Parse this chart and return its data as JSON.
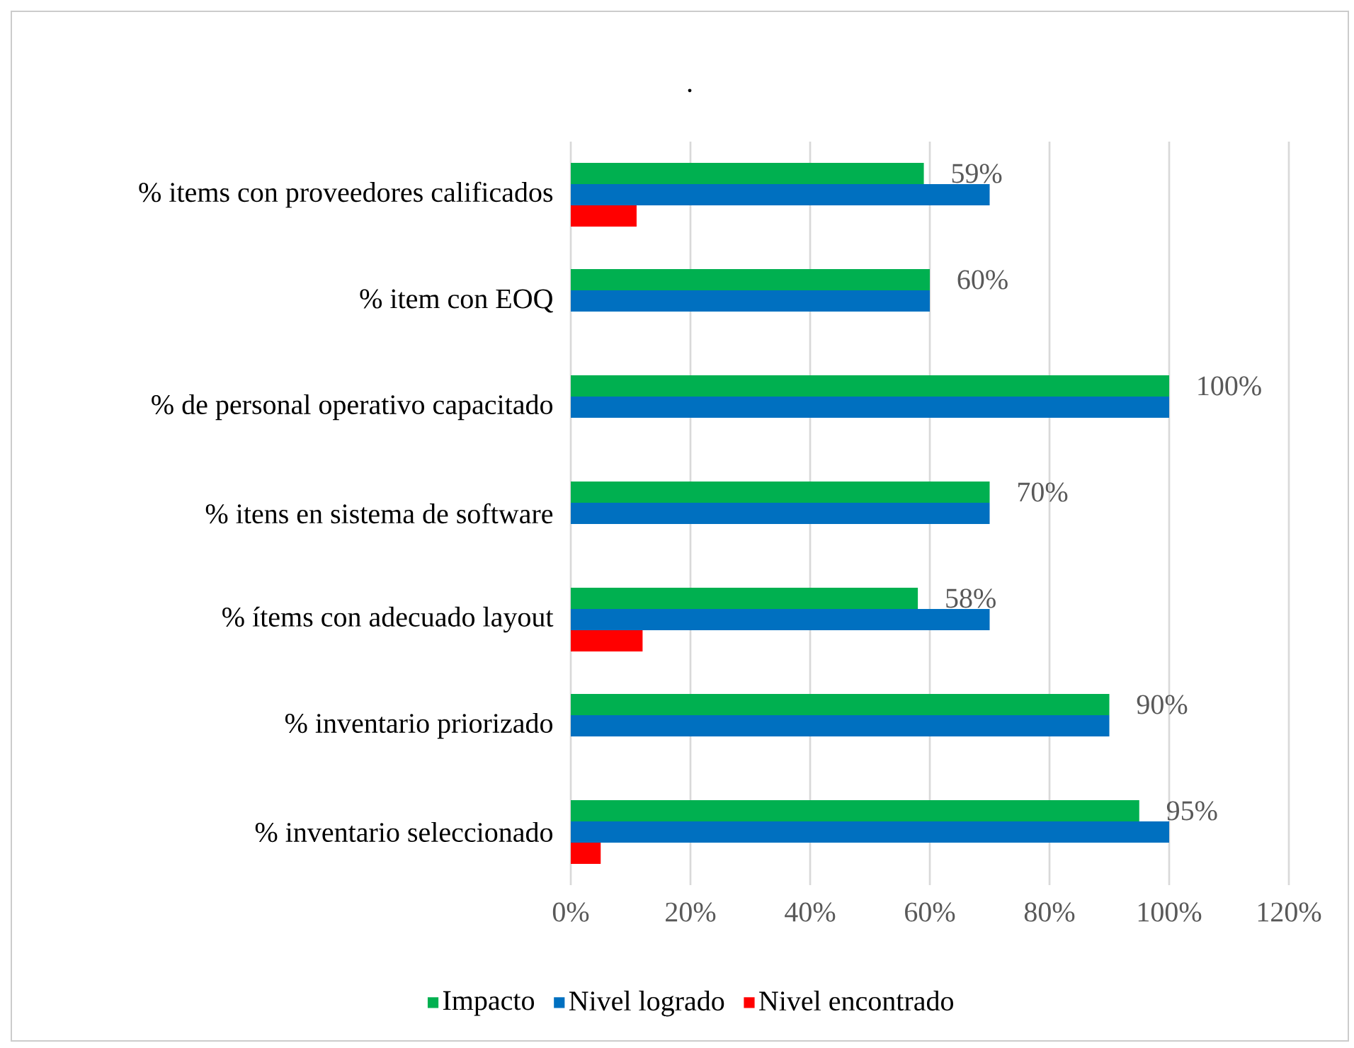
{
  "chart_data": {
    "type": "bar",
    "orientation": "horizontal",
    "title": ".",
    "categories": [
      "% items con proveedores calificados",
      "% item con EOQ",
      "% de personal operativo capacitado",
      "% itens en sistema de software",
      "% ítems con adecuado layout",
      "% inventario priorizado",
      "% inventario seleccionado"
    ],
    "series": [
      {
        "name": "Impacto",
        "color": "#00b050",
        "values": [
          59,
          60,
          100,
          70,
          58,
          90,
          95
        ],
        "value_labels": [
          "59%",
          "60%",
          "100%",
          "70%",
          "58%",
          "90%",
          "95%"
        ]
      },
      {
        "name": "Nivel logrado",
        "color": "#0070c0",
        "values": [
          70,
          60,
          100,
          70,
          70,
          90,
          100
        ]
      },
      {
        "name": "Nivel encontrado",
        "color": "#ff0000",
        "values": [
          11,
          null,
          null,
          null,
          12,
          null,
          5
        ]
      }
    ],
    "xlim": [
      0,
      120
    ],
    "xticks": [
      {
        "value": 0,
        "label": "0%"
      },
      {
        "value": 20,
        "label": "20%"
      },
      {
        "value": 40,
        "label": "40%"
      },
      {
        "value": 60,
        "label": "60%"
      },
      {
        "value": 80,
        "label": "80%"
      },
      {
        "value": 100,
        "label": "100%"
      },
      {
        "value": 120,
        "label": "120%"
      }
    ],
    "grid": "x",
    "legend": "bottom"
  }
}
